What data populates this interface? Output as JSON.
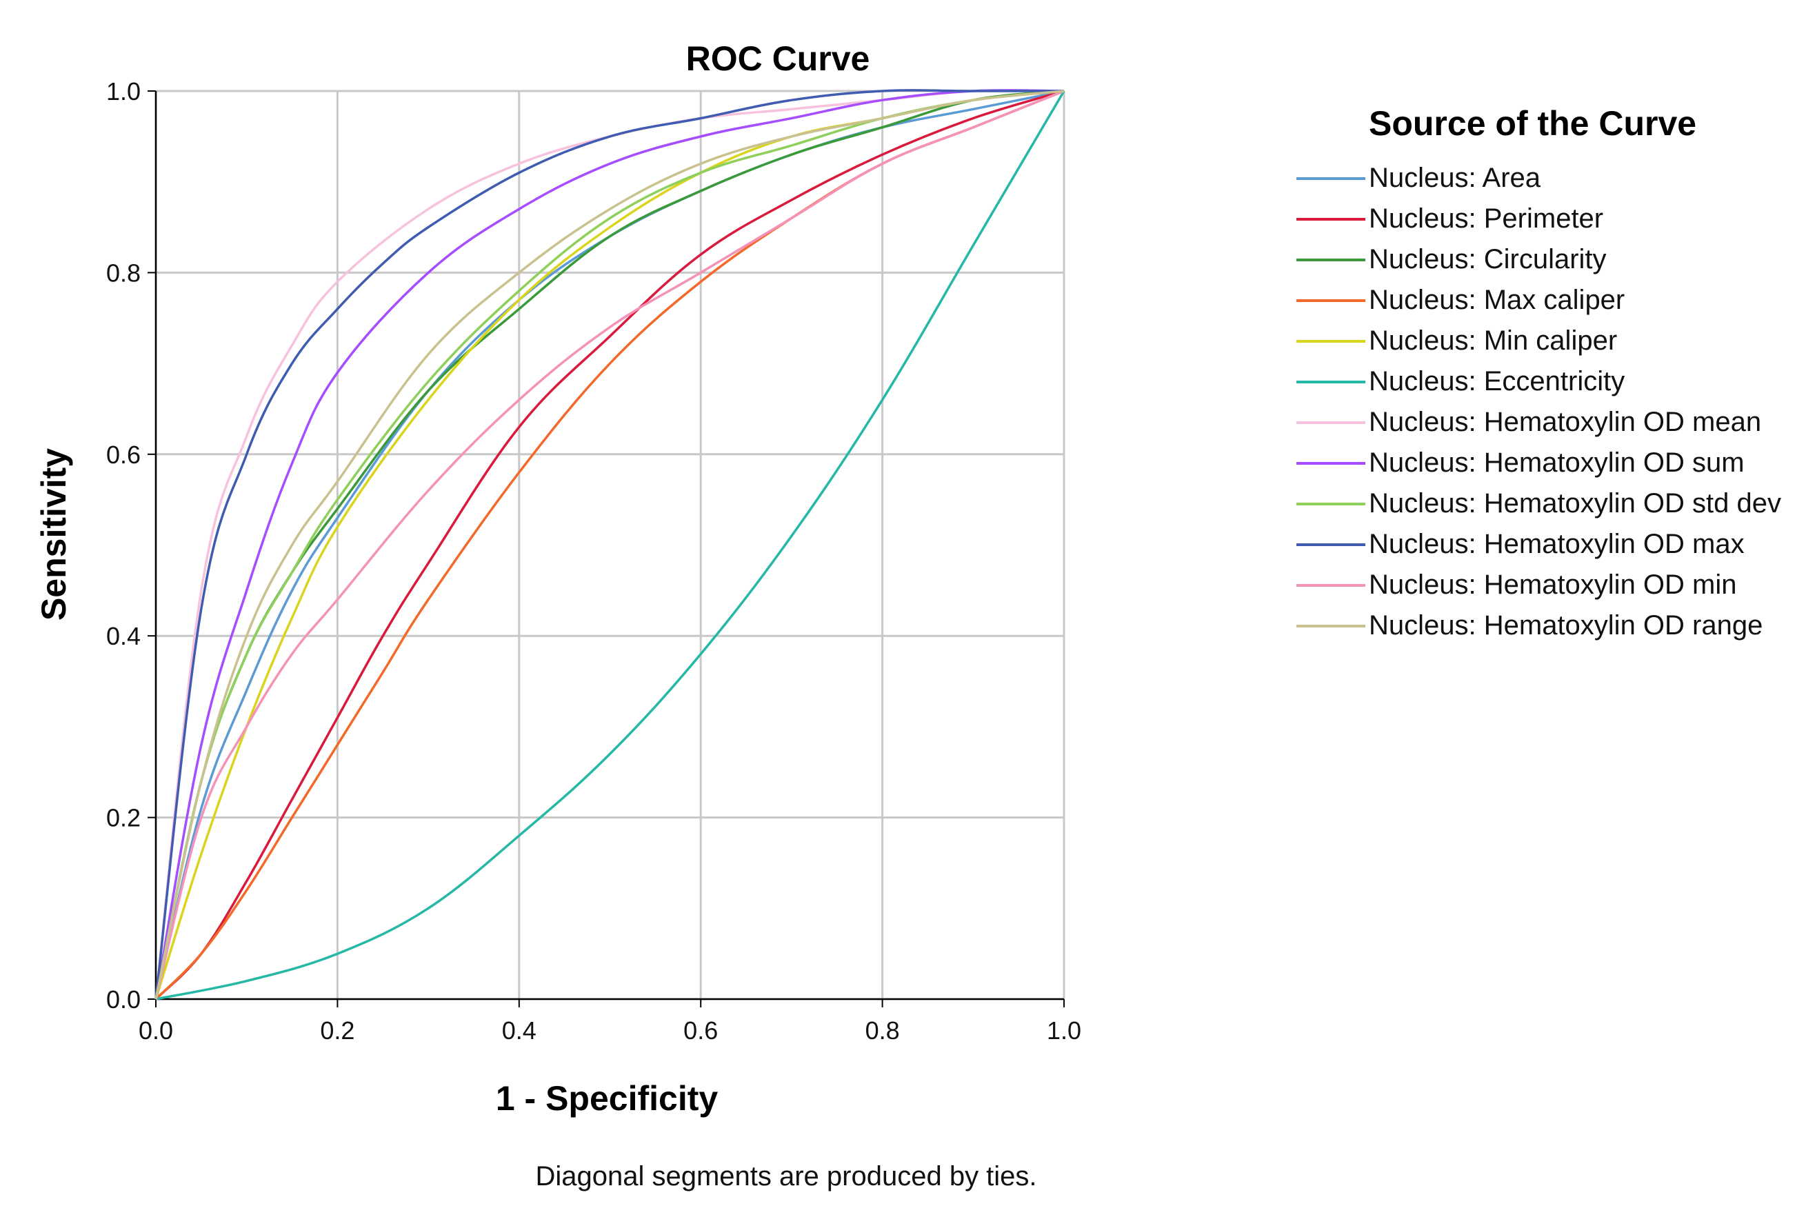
{
  "chart_data": {
    "type": "line",
    "title": "ROC Curve",
    "xlabel": "1 - Specificity",
    "ylabel": "Sensitivity",
    "xlim": [
      0,
      1
    ],
    "ylim": [
      0,
      1
    ],
    "x_ticks": [
      "0.0",
      "0.2",
      "0.4",
      "0.6",
      "0.8",
      "1.0"
    ],
    "y_ticks": [
      "0.0",
      "0.2",
      "0.4",
      "0.6",
      "0.8",
      "1.0"
    ],
    "grid": true,
    "legend_title": "Source of the Curve",
    "legend_position": "right",
    "footnote": "Diagonal segments are produced by ties.",
    "series": [
      {
        "name": "Nucleus: Area",
        "color": "#5b9bd5",
        "x": [
          0,
          0.05,
          0.1,
          0.15,
          0.2,
          0.3,
          0.4,
          0.5,
          0.6,
          0.7,
          0.8,
          0.9,
          1.0
        ],
        "y": [
          0,
          0.21,
          0.34,
          0.45,
          0.53,
          0.67,
          0.77,
          0.84,
          0.89,
          0.93,
          0.96,
          0.98,
          1.0
        ]
      },
      {
        "name": "Nucleus: Perimeter",
        "color": "#d91a3c",
        "x": [
          0,
          0.05,
          0.1,
          0.15,
          0.2,
          0.25,
          0.3,
          0.4,
          0.5,
          0.6,
          0.7,
          0.8,
          0.9,
          1.0
        ],
        "y": [
          0,
          0.05,
          0.13,
          0.22,
          0.31,
          0.4,
          0.48,
          0.63,
          0.73,
          0.82,
          0.88,
          0.93,
          0.97,
          1.0
        ]
      },
      {
        "name": "Nucleus: Circularity",
        "color": "#3a9a3a",
        "x": [
          0,
          0.05,
          0.1,
          0.15,
          0.2,
          0.3,
          0.4,
          0.5,
          0.6,
          0.7,
          0.8,
          0.9,
          1.0
        ],
        "y": [
          0,
          0.24,
          0.38,
          0.47,
          0.54,
          0.67,
          0.76,
          0.84,
          0.89,
          0.93,
          0.96,
          0.99,
          1.0
        ]
      },
      {
        "name": "Nucleus: Max caliper",
        "color": "#f2692a",
        "x": [
          0,
          0.05,
          0.1,
          0.15,
          0.2,
          0.25,
          0.3,
          0.4,
          0.5,
          0.6,
          0.7,
          0.8,
          0.9,
          1.0
        ],
        "y": [
          0,
          0.05,
          0.12,
          0.2,
          0.28,
          0.36,
          0.44,
          0.58,
          0.7,
          0.79,
          0.86,
          0.92,
          0.96,
          1.0
        ]
      },
      {
        "name": "Nucleus: Min caliper",
        "color": "#d9d41e",
        "x": [
          0,
          0.05,
          0.1,
          0.15,
          0.2,
          0.3,
          0.4,
          0.5,
          0.6,
          0.7,
          0.8,
          0.9,
          1.0
        ],
        "y": [
          0,
          0.16,
          0.3,
          0.42,
          0.52,
          0.66,
          0.77,
          0.85,
          0.91,
          0.95,
          0.97,
          0.99,
          1.0
        ]
      },
      {
        "name": "Nucleus: Eccentricity",
        "color": "#26b8a6",
        "x": [
          0,
          0.1,
          0.2,
          0.3,
          0.4,
          0.5,
          0.6,
          0.7,
          0.8,
          0.9,
          1.0
        ],
        "y": [
          0,
          0.02,
          0.05,
          0.1,
          0.18,
          0.27,
          0.38,
          0.51,
          0.66,
          0.83,
          1.0
        ]
      },
      {
        "name": "Nucleus: Hematoxylin OD mean",
        "color": "#f7c2dd",
        "x": [
          0,
          0.05,
          0.1,
          0.15,
          0.2,
          0.3,
          0.4,
          0.5,
          0.6,
          0.7,
          0.8,
          0.9,
          1.0
        ],
        "y": [
          0,
          0.45,
          0.62,
          0.72,
          0.79,
          0.87,
          0.92,
          0.95,
          0.97,
          0.98,
          0.99,
          1.0,
          1.0
        ]
      },
      {
        "name": "Nucleus: Hematoxylin OD sum",
        "color": "#a64dff",
        "x": [
          0,
          0.05,
          0.1,
          0.15,
          0.2,
          0.3,
          0.4,
          0.5,
          0.6,
          0.7,
          0.8,
          0.9,
          1.0
        ],
        "y": [
          0,
          0.28,
          0.45,
          0.59,
          0.69,
          0.8,
          0.87,
          0.92,
          0.95,
          0.97,
          0.99,
          1.0,
          1.0
        ]
      },
      {
        "name": "Nucleus: Hematoxylin OD std dev",
        "color": "#8fcf5b",
        "x": [
          0,
          0.05,
          0.1,
          0.15,
          0.2,
          0.3,
          0.4,
          0.5,
          0.6,
          0.7,
          0.8,
          0.9,
          1.0
        ],
        "y": [
          0,
          0.24,
          0.38,
          0.47,
          0.55,
          0.68,
          0.78,
          0.86,
          0.91,
          0.94,
          0.97,
          0.99,
          1.0
        ]
      },
      {
        "name": "Nucleus: Hematoxylin OD max",
        "color": "#3f5cb0",
        "x": [
          0,
          0.05,
          0.1,
          0.15,
          0.2,
          0.25,
          0.3,
          0.4,
          0.5,
          0.6,
          0.7,
          0.8,
          0.9,
          1.0
        ],
        "y": [
          0,
          0.43,
          0.6,
          0.7,
          0.76,
          0.81,
          0.85,
          0.91,
          0.95,
          0.97,
          0.99,
          1.0,
          1.0,
          1.0
        ]
      },
      {
        "name": "Nucleus: Hematoxylin OD min",
        "color": "#f592b8",
        "x": [
          0,
          0.05,
          0.1,
          0.15,
          0.2,
          0.3,
          0.4,
          0.5,
          0.6,
          0.7,
          0.8,
          0.9,
          1.0
        ],
        "y": [
          0,
          0.2,
          0.3,
          0.38,
          0.44,
          0.56,
          0.66,
          0.74,
          0.8,
          0.86,
          0.92,
          0.96,
          1.0
        ]
      },
      {
        "name": "Nucleus: Hematoxylin OD range",
        "color": "#c9c28e",
        "x": [
          0,
          0.05,
          0.1,
          0.15,
          0.2,
          0.3,
          0.4,
          0.5,
          0.6,
          0.7,
          0.8,
          0.9,
          1.0
        ],
        "y": [
          0,
          0.24,
          0.4,
          0.5,
          0.57,
          0.71,
          0.8,
          0.87,
          0.92,
          0.95,
          0.97,
          0.99,
          1.0
        ]
      }
    ]
  }
}
